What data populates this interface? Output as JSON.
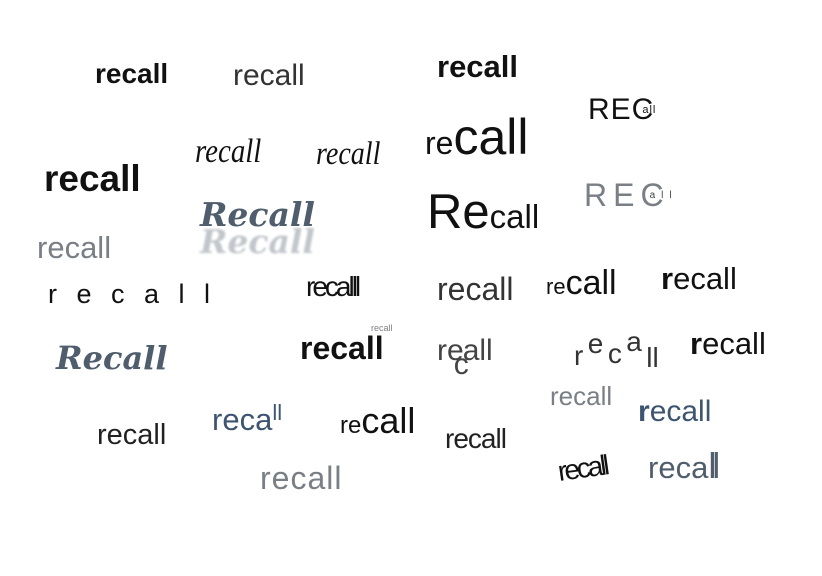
{
  "words": {
    "w1": "recall",
    "w2": "recall",
    "w3": "recall",
    "w4": "REC",
    "w4b": "all",
    "w5": "recall",
    "w6": "recall",
    "w7a": "re",
    "w7b": "call",
    "w8": "recall",
    "w9": "Recall",
    "w9shadow": "Recall",
    "w10a": "Re",
    "w10b": "call",
    "w11": "REC",
    "w11b": "all",
    "w12": "recall",
    "w13": "r e c a l l",
    "w14": "recalll",
    "w15": "recall",
    "w16a": "re",
    "w16b": "call",
    "w17a": "r",
    "w17b": "ecall",
    "w18": "Recall",
    "w19": "recall",
    "w19tiny": "recall",
    "w20a": "re",
    "w20b": "c",
    "w20c": "all",
    "w21a": "r",
    "w21b": "e",
    "w21c": "c",
    "w21d": "a",
    "w21e": "ll",
    "w22a": "r",
    "w22b": "ecall",
    "w23": "recall",
    "w24a": "reca",
    "w24b": "ll",
    "w25a": "re",
    "w25b": "call",
    "w26": "recall",
    "w27": "recall",
    "w28a": "r",
    "w28b": "ecall",
    "w29": "recall",
    "w30": "recall",
    "w31a": "reca",
    "w31b": "ll"
  }
}
